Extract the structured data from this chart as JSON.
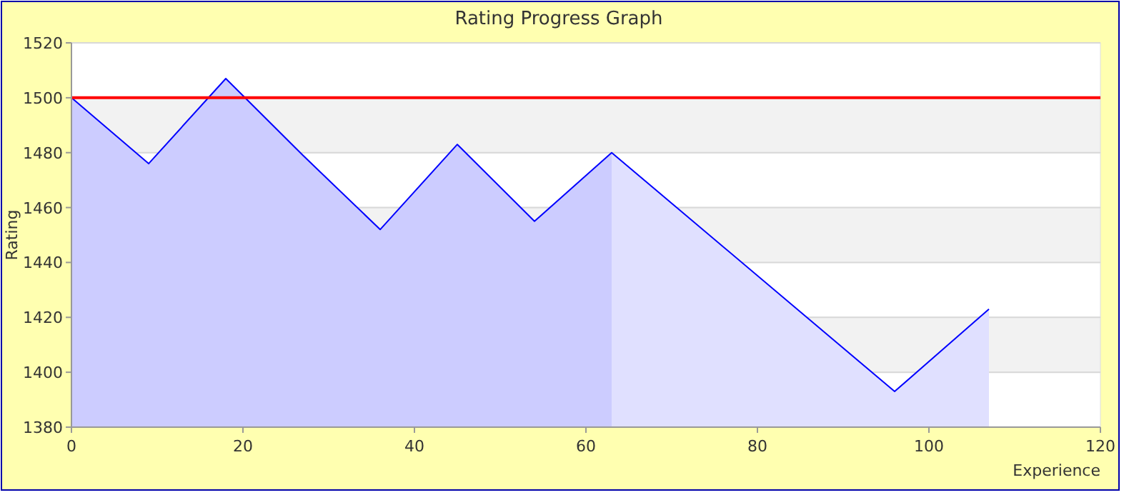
{
  "chart_data": {
    "type": "area",
    "title": "Rating Progress Graph",
    "xlabel": "Experience",
    "ylabel": "Rating",
    "xlim": [
      0,
      120
    ],
    "xticks": [
      0,
      20,
      40,
      60,
      80,
      100,
      120
    ],
    "ylim": [
      1380,
      1520
    ],
    "yticks": [
      1380,
      1400,
      1420,
      1440,
      1460,
      1480,
      1500,
      1520
    ],
    "grid": "y",
    "series": [
      {
        "color": "#ccccff",
        "x": [
          0,
          9,
          18,
          27,
          36,
          45,
          54,
          63
        ],
        "values": [
          1500,
          1476,
          1507,
          1479,
          1452,
          1483,
          1455,
          1480
        ]
      },
      {
        "color": "#e0e0ff",
        "x": [
          63,
          96,
          107
        ],
        "values": [
          1480,
          1393,
          1423
        ]
      },
      {
        "type": "line",
        "color": "#0000ff",
        "x": [
          0,
          9,
          18,
          27,
          36,
          45,
          54,
          63,
          96,
          107
        ],
        "values": [
          1500,
          1476,
          1507,
          1479,
          1452,
          1483,
          1455,
          1480,
          1393,
          1423
        ]
      }
    ],
    "ref_lines": [
      {
        "axis": "y",
        "value": 1500,
        "color": "#ff0000"
      }
    ]
  }
}
